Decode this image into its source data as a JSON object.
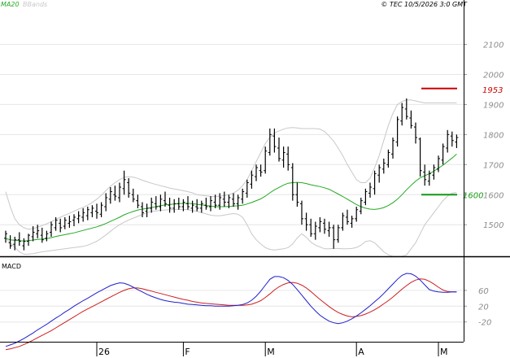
{
  "header": {
    "ma_label": "MA20",
    "bb_label": "BBands",
    "copyright": "© TEC 10/5/2026 3:0 GMT"
  },
  "colors": {
    "ma": "#22aa22",
    "bbands": "#c8c8c8",
    "macd": "#1f1fcc",
    "signal": "#cc1f1f",
    "resistance": "#cc0000",
    "support": "#119911",
    "bars": "#000000",
    "grid": "#e6e6e6",
    "axis": "#000000"
  },
  "chart_data": [
    {
      "type": "ohlc",
      "name": "price",
      "ylim": [
        1395,
        2215
      ],
      "y_ticks": [
        1500,
        1600,
        1700,
        1800,
        1900,
        2000,
        2100
      ],
      "grid": true,
      "ohlc": [
        [
          1455,
          1480,
          1440,
          1470
        ],
        [
          1440,
          1465,
          1420,
          1430
        ],
        [
          1435,
          1460,
          1415,
          1450
        ],
        [
          1450,
          1475,
          1430,
          1445
        ],
        [
          1430,
          1455,
          1415,
          1445
        ],
        [
          1445,
          1470,
          1430,
          1465
        ],
        [
          1460,
          1495,
          1445,
          1475
        ],
        [
          1470,
          1500,
          1455,
          1480
        ],
        [
          1465,
          1490,
          1440,
          1450
        ],
        [
          1455,
          1480,
          1445,
          1470
        ],
        [
          1475,
          1510,
          1460,
          1500
        ],
        [
          1490,
          1525,
          1480,
          1515
        ],
        [
          1505,
          1520,
          1475,
          1490
        ],
        [
          1495,
          1525,
          1485,
          1515
        ],
        [
          1505,
          1530,
          1490,
          1510
        ],
        [
          1515,
          1535,
          1495,
          1525
        ],
        [
          1520,
          1545,
          1505,
          1530
        ],
        [
          1525,
          1555,
          1510,
          1540
        ],
        [
          1530,
          1560,
          1515,
          1550
        ],
        [
          1540,
          1565,
          1525,
          1555
        ],
        [
          1545,
          1570,
          1520,
          1540
        ],
        [
          1535,
          1575,
          1525,
          1565
        ],
        [
          1560,
          1605,
          1545,
          1590
        ],
        [
          1585,
          1625,
          1570,
          1610
        ],
        [
          1600,
          1630,
          1580,
          1595
        ],
        [
          1590,
          1640,
          1575,
          1625
        ],
        [
          1620,
          1680,
          1600,
          1650
        ],
        [
          1640,
          1655,
          1590,
          1605
        ],
        [
          1600,
          1620,
          1575,
          1585
        ],
        [
          1580,
          1600,
          1555,
          1565
        ],
        [
          1560,
          1575,
          1525,
          1540
        ],
        [
          1545,
          1570,
          1525,
          1555
        ],
        [
          1555,
          1590,
          1540,
          1575
        ],
        [
          1570,
          1595,
          1550,
          1560
        ],
        [
          1560,
          1600,
          1545,
          1585
        ],
        [
          1580,
          1610,
          1560,
          1570
        ],
        [
          1565,
          1590,
          1540,
          1555
        ],
        [
          1555,
          1585,
          1540,
          1570
        ],
        [
          1570,
          1590,
          1550,
          1560
        ],
        [
          1560,
          1585,
          1545,
          1575
        ],
        [
          1570,
          1595,
          1550,
          1560
        ],
        [
          1555,
          1580,
          1540,
          1565
        ],
        [
          1560,
          1585,
          1545,
          1555
        ],
        [
          1555,
          1580,
          1540,
          1570
        ],
        [
          1565,
          1590,
          1550,
          1560
        ],
        [
          1560,
          1595,
          1545,
          1580
        ],
        [
          1575,
          1600,
          1555,
          1565
        ],
        [
          1565,
          1605,
          1550,
          1590
        ],
        [
          1585,
          1610,
          1560,
          1575
        ],
        [
          1575,
          1600,
          1555,
          1590
        ],
        [
          1585,
          1605,
          1560,
          1570
        ],
        [
          1570,
          1600,
          1550,
          1590
        ],
        [
          1585,
          1620,
          1570,
          1610
        ],
        [
          1605,
          1650,
          1590,
          1640
        ],
        [
          1635,
          1680,
          1620,
          1665
        ],
        [
          1660,
          1700,
          1645,
          1690
        ],
        [
          1680,
          1700,
          1660,
          1675
        ],
        [
          1680,
          1760,
          1670,
          1745
        ],
        [
          1740,
          1820,
          1730,
          1800
        ],
        [
          1795,
          1820,
          1740,
          1760
        ],
        [
          1755,
          1790,
          1710,
          1720
        ],
        [
          1715,
          1760,
          1690,
          1740
        ],
        [
          1735,
          1760,
          1680,
          1700
        ],
        [
          1690,
          1705,
          1580,
          1600
        ],
        [
          1600,
          1640,
          1560,
          1575
        ],
        [
          1570,
          1580,
          1500,
          1520
        ],
        [
          1520,
          1540,
          1480,
          1500
        ],
        [
          1500,
          1520,
          1460,
          1470
        ],
        [
          1470,
          1510,
          1450,
          1495
        ],
        [
          1490,
          1525,
          1475,
          1510
        ],
        [
          1505,
          1520,
          1470,
          1485
        ],
        [
          1480,
          1510,
          1460,
          1490
        ],
        [
          1490,
          1500,
          1420,
          1450
        ],
        [
          1450,
          1500,
          1440,
          1490
        ],
        [
          1490,
          1540,
          1480,
          1530
        ],
        [
          1525,
          1550,
          1500,
          1510
        ],
        [
          1505,
          1530,
          1490,
          1520
        ],
        [
          1520,
          1560,
          1510,
          1550
        ],
        [
          1545,
          1590,
          1535,
          1580
        ],
        [
          1575,
          1620,
          1565,
          1610
        ],
        [
          1605,
          1640,
          1590,
          1625
        ],
        [
          1620,
          1680,
          1600,
          1670
        ],
        [
          1665,
          1700,
          1640,
          1690
        ],
        [
          1685,
          1720,
          1670,
          1705
        ],
        [
          1700,
          1750,
          1690,
          1740
        ],
        [
          1735,
          1790,
          1720,
          1780
        ],
        [
          1775,
          1860,
          1760,
          1850
        ],
        [
          1845,
          1905,
          1830,
          1890
        ],
        [
          1885,
          1920,
          1850,
          1860
        ],
        [
          1855,
          1880,
          1820,
          1830
        ],
        [
          1825,
          1840,
          1770,
          1790
        ],
        [
          1785,
          1790,
          1660,
          1680
        ],
        [
          1675,
          1700,
          1630,
          1650
        ],
        [
          1645,
          1680,
          1630,
          1670
        ],
        [
          1665,
          1700,
          1650,
          1690
        ],
        [
          1685,
          1730,
          1675,
          1720
        ],
        [
          1715,
          1770,
          1700,
          1760
        ],
        [
          1755,
          1815,
          1740,
          1800
        ],
        [
          1795,
          1810,
          1760,
          1780
        ],
        [
          1775,
          1800,
          1755,
          1790
        ]
      ],
      "ma20": [
        1455,
        1450,
        1448,
        1447,
        1446,
        1447,
        1449,
        1451,
        1452,
        1454,
        1457,
        1461,
        1464,
        1467,
        1470,
        1473,
        1477,
        1481,
        1485,
        1489,
        1493,
        1498,
        1504,
        1511,
        1518,
        1525,
        1533,
        1539,
        1544,
        1549,
        1552,
        1554,
        1557,
        1560,
        1563,
        1566,
        1567,
        1569,
        1570,
        1571,
        1571,
        1570,
        1568,
        1566,
        1564,
        1562,
        1560,
        1560,
        1560,
        1561,
        1562,
        1563,
        1565,
        1569,
        1574,
        1580,
        1586,
        1595,
        1606,
        1616,
        1624,
        1632,
        1638,
        1640,
        1641,
        1640,
        1637,
        1633,
        1630,
        1627,
        1623,
        1618,
        1610,
        1602,
        1594,
        1585,
        1576,
        1567,
        1560,
        1555,
        1552,
        1551,
        1553,
        1557,
        1564,
        1573,
        1585,
        1600,
        1616,
        1631,
        1645,
        1656,
        1663,
        1670,
        1678,
        1688,
        1698,
        1710,
        1722,
        1735
      ],
      "bb_upper": [
        1610,
        1560,
        1520,
        1500,
        1490,
        1485,
        1487,
        1492,
        1497,
        1503,
        1510,
        1518,
        1525,
        1532,
        1538,
        1545,
        1552,
        1558,
        1565,
        1574,
        1585,
        1598,
        1613,
        1628,
        1640,
        1650,
        1658,
        1660,
        1658,
        1654,
        1648,
        1643,
        1638,
        1634,
        1630,
        1626,
        1622,
        1619,
        1616,
        1613,
        1610,
        1606,
        1600,
        1598,
        1596,
        1594,
        1594,
        1595,
        1597,
        1600,
        1605,
        1615,
        1630,
        1650,
        1680,
        1710,
        1740,
        1770,
        1790,
        1805,
        1812,
        1818,
        1822,
        1823,
        1822,
        1820,
        1820,
        1820,
        1820,
        1818,
        1810,
        1795,
        1778,
        1755,
        1730,
        1700,
        1675,
        1650,
        1640,
        1640,
        1655,
        1690,
        1730,
        1780,
        1830,
        1870,
        1900,
        1910,
        1915,
        1915,
        1912,
        1908,
        1905,
        1905,
        1905,
        1905,
        1905,
        1905,
        1905,
        1905
      ],
      "bb_lower": [
        1455,
        1440,
        1425,
        1410,
        1402,
        1402,
        1404,
        1407,
        1410,
        1412,
        1414,
        1416,
        1418,
        1420,
        1422,
        1424,
        1426,
        1428,
        1432,
        1438,
        1445,
        1455,
        1466,
        1478,
        1490,
        1500,
        1508,
        1516,
        1522,
        1528,
        1534,
        1540,
        1544,
        1546,
        1548,
        1549,
        1550,
        1551,
        1551,
        1551,
        1550,
        1547,
        1544,
        1540,
        1536,
        1532,
        1530,
        1530,
        1532,
        1535,
        1537,
        1535,
        1525,
        1500,
        1470,
        1450,
        1436,
        1424,
        1418,
        1416,
        1418,
        1420,
        1424,
        1436,
        1456,
        1470,
        1458,
        1442,
        1432,
        1426,
        1420,
        1420,
        1421,
        1421,
        1420,
        1420,
        1421,
        1424,
        1432,
        1444,
        1447,
        1440,
        1425,
        1410,
        1400,
        1395,
        1395,
        1395,
        1400,
        1420,
        1440,
        1470,
        1500,
        1520,
        1540,
        1560,
        1580,
        1595,
        1605,
        1608
      ],
      "resistance": 1953,
      "support": 1600,
      "resistance_label": "1953",
      "support_label": "1600"
    },
    {
      "type": "line",
      "name": "MACD",
      "title": "MACD",
      "ylim": [
        -70,
        140
      ],
      "y_ticks": [
        -20,
        20,
        60
      ],
      "y_tick_labels": [
        "-20",
        "20",
        "60"
      ],
      "macd": [
        -82,
        -78,
        -74,
        -68,
        -62,
        -55,
        -48,
        -40,
        -33,
        -26,
        -18,
        -10,
        -3,
        5,
        12,
        20,
        27,
        34,
        40,
        47,
        54,
        60,
        66,
        72,
        76,
        79,
        78,
        74,
        68,
        62,
        56,
        50,
        45,
        41,
        37,
        34,
        32,
        30,
        29,
        27,
        25,
        24,
        23,
        22,
        21,
        21,
        20,
        20,
        20,
        20,
        21,
        22,
        24,
        28,
        35,
        45,
        58,
        73,
        88,
        95,
        95,
        92,
        85,
        75,
        62,
        48,
        34,
        20,
        8,
        -3,
        -11,
        -18,
        -22,
        -24,
        -22,
        -18,
        -12,
        -5,
        3,
        12,
        21,
        31,
        41,
        52,
        64,
        76,
        88,
        98,
        103,
        102,
        96,
        86,
        74,
        62,
        58,
        56,
        55,
        55,
        56,
        56
      ],
      "signal": [
        -90,
        -88,
        -85,
        -82,
        -77,
        -72,
        -66,
        -60,
        -54,
        -48,
        -42,
        -35,
        -28,
        -21,
        -14,
        -7,
        0,
        7,
        13,
        19,
        25,
        31,
        37,
        43,
        49,
        55,
        60,
        64,
        66,
        66,
        64,
        61,
        58,
        55,
        52,
        49,
        46,
        43,
        40,
        37,
        35,
        32,
        30,
        28,
        27,
        26,
        25,
        24,
        23,
        22,
        22,
        22,
        22,
        23,
        25,
        29,
        34,
        42,
        51,
        61,
        69,
        75,
        79,
        80,
        78,
        73,
        66,
        57,
        47,
        37,
        28,
        19,
        11,
        4,
        -1,
        -5,
        -7,
        -6,
        -4,
        0,
        5,
        11,
        18,
        26,
        34,
        43,
        53,
        63,
        72,
        80,
        86,
        89,
        88,
        83,
        76,
        68,
        61,
        57,
        56,
        56
      ]
    }
  ],
  "x_axis": {
    "labels": [
      "26",
      "F",
      "M",
      "A",
      "M"
    ],
    "label_index": [
      20,
      39,
      57,
      77,
      95
    ]
  }
}
